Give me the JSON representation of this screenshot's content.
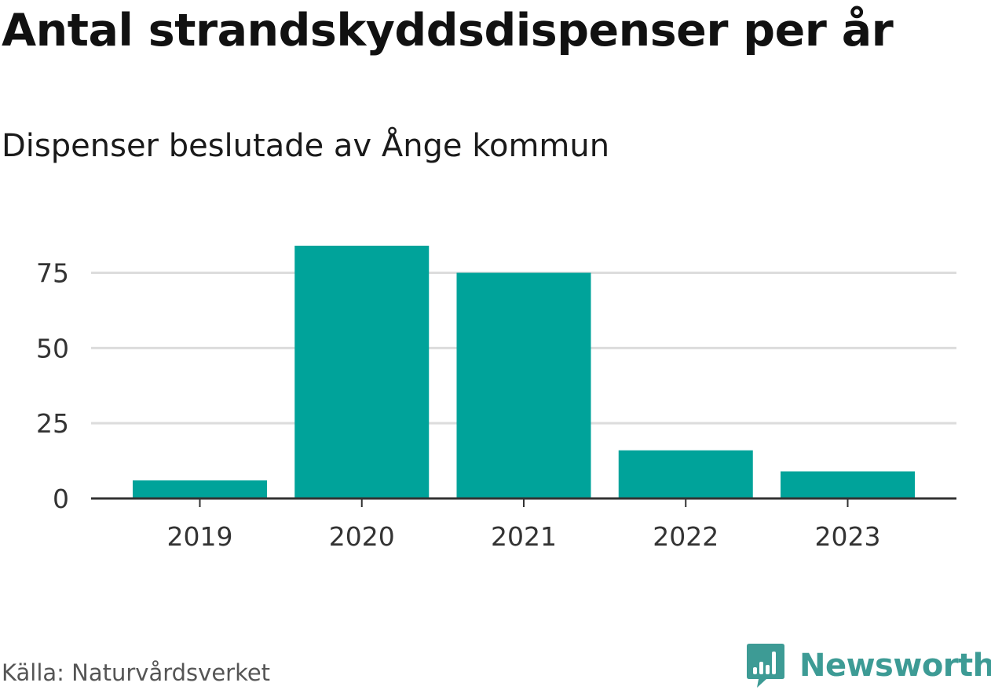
{
  "chart_data": {
    "type": "bar",
    "title": "Antal strandskyddsdispenser per år",
    "subtitle": "Dispenser beslutade av Ånge kommun",
    "categories": [
      "2019",
      "2020",
      "2021",
      "2022",
      "2023"
    ],
    "values": [
      6,
      84,
      75,
      16,
      9
    ],
    "xlabel": "",
    "ylabel": "",
    "ylim": [
      0,
      90
    ],
    "yticks": [
      0,
      25,
      50,
      75
    ],
    "ytick_labels": [
      "0",
      "25",
      "50",
      "75"
    ],
    "grid": true,
    "bar_color": "#00a39a"
  },
  "footer": {
    "source": "Källa: Naturvårdsverket",
    "brand": "Newsworthy",
    "brand_color": "#3d9b95",
    "brand_icon": "bar-chart-speech-bubble-icon"
  }
}
